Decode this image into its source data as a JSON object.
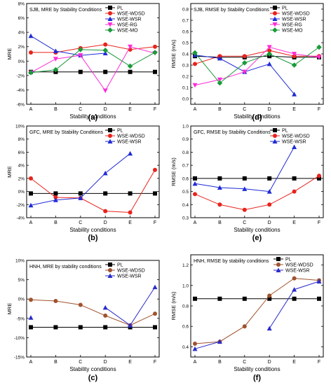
{
  "chart_data": [
    {
      "id": "a",
      "panel_label": "(a)",
      "type": "line",
      "title": "SJB, MRE by Stability Conditions",
      "xlabel": "Stability conditions",
      "ylabel": "MRE",
      "categories": [
        "A",
        "B",
        "C",
        "D",
        "E",
        "F"
      ],
      "ylim": [
        -6,
        8
      ],
      "yticks": [
        -6,
        -4,
        -2,
        0,
        2,
        4,
        6,
        8
      ],
      "ytick_labels": [
        "-6%",
        "-4%",
        "-2%",
        "0%",
        "2%",
        "4%",
        "6%",
        "8%"
      ],
      "legend": "top-right",
      "series": [
        {
          "name": "PL",
          "color": "#000000",
          "marker": "square",
          "values": [
            -1.5,
            -1.5,
            -1.5,
            -1.5,
            -1.5,
            -1.5
          ]
        },
        {
          "name": "WSE-WDSD",
          "color": "#e8231c",
          "marker": "circle",
          "values": [
            1.2,
            1.2,
            1.8,
            2.3,
            1.6,
            2.0
          ]
        },
        {
          "name": "WSE-WSR",
          "color": "#1f2bd6",
          "marker": "triangle-up",
          "values": [
            3.5,
            1.4,
            0.8,
            1.1,
            null,
            null
          ]
        },
        {
          "name": "WSE-RG",
          "color": "#ff2bd6",
          "marker": "triangle-down",
          "values": [
            -1.6,
            0.3,
            0.8,
            -4.1,
            2.0,
            1.1
          ]
        },
        {
          "name": "WSE-MO",
          "color": "#1a9a3a",
          "marker": "diamond",
          "values": [
            -1.6,
            -1.2,
            1.6,
            1.5,
            -0.7,
            1.2
          ]
        }
      ]
    },
    {
      "id": "d",
      "panel_label": "(d)",
      "type": "line",
      "title": "SJB, RMSE by Stability Conditions",
      "xlabel": "Stability conditions",
      "ylabel": "RMSE (m/s)",
      "categories": [
        "A",
        "B",
        "C",
        "D",
        "E",
        "F"
      ],
      "ylim": [
        -0.05,
        0.85
      ],
      "yticks": [
        0,
        0.1,
        0.2,
        0.3,
        0.4,
        0.5,
        0.6,
        0.7,
        0.8
      ],
      "ytick_labels": [
        "0.0",
        "0.1",
        "0.2",
        "0.3",
        "0.4",
        "0.5",
        "0.6",
        "0.7",
        "0.8"
      ],
      "legend": "top-right",
      "series": [
        {
          "name": "PL",
          "color": "#000000",
          "marker": "square",
          "values": [
            0.38,
            0.37,
            0.37,
            0.38,
            0.37,
            0.37
          ]
        },
        {
          "name": "WSE-WDSD",
          "color": "#e8231c",
          "marker": "circle",
          "values": [
            0.31,
            0.38,
            0.38,
            0.43,
            0.38,
            0.38
          ]
        },
        {
          "name": "WSE-WSR",
          "color": "#1f2bd6",
          "marker": "triangle-up",
          "values": [
            0.39,
            0.36,
            0.24,
            0.31,
            0.04,
            null
          ]
        },
        {
          "name": "WSE-RG",
          "color": "#ff2bd6",
          "marker": "triangle-down",
          "values": [
            0.12,
            0.17,
            0.24,
            0.46,
            0.4,
            0.37
          ]
        },
        {
          "name": "WSE-MO",
          "color": "#1a9a3a",
          "marker": "diamond",
          "values": [
            0.41,
            0.14,
            0.32,
            0.4,
            0.3,
            0.46
          ]
        }
      ]
    },
    {
      "id": "b",
      "panel_label": "(b)",
      "type": "line",
      "title": "GFC, MRE by Stability Conditions",
      "xlabel": "Stability conditions",
      "ylabel": "MRE",
      "categories": [
        "A",
        "B",
        "C",
        "D",
        "E",
        "F"
      ],
      "ylim": [
        -4,
        10
      ],
      "yticks": [
        -4,
        -2,
        0,
        2,
        4,
        6,
        8,
        10
      ],
      "ytick_labels": [
        "-4%",
        "-2%",
        "0%",
        "2%",
        "4%",
        "6%",
        "8%",
        "10%"
      ],
      "legend": "top-right",
      "series": [
        {
          "name": "PL",
          "color": "#000000",
          "marker": "square",
          "values": [
            -0.3,
            -0.3,
            -0.3,
            -0.3,
            -0.3,
            -0.3
          ]
        },
        {
          "name": "WSE-WDSD",
          "color": "#e8231c",
          "marker": "circle",
          "values": [
            2.0,
            -0.9,
            -1.0,
            -3.0,
            -3.2,
            3.3
          ]
        },
        {
          "name": "WSE-WSR",
          "color": "#1f2bd6",
          "marker": "triangle-up",
          "values": [
            -2.1,
            -1.3,
            -1.0,
            2.8,
            5.8,
            null
          ]
        }
      ]
    },
    {
      "id": "e",
      "panel_label": "(e)",
      "type": "line",
      "title": "GFC, RMSE by Stability Conditions",
      "xlabel": "Stability conditions",
      "ylabel": "RMSE (m/s)",
      "categories": [
        "A",
        "B",
        "C",
        "D",
        "E",
        "F"
      ],
      "ylim": [
        0.3,
        1.0
      ],
      "yticks": [
        0.3,
        0.4,
        0.5,
        0.6,
        0.7,
        0.8,
        0.9,
        1.0
      ],
      "ytick_labels": [
        "0.3",
        "0.4",
        "0.5",
        "0.6",
        "0.7",
        "0.8",
        "0.9",
        "1.0"
      ],
      "legend": "top-right",
      "series": [
        {
          "name": "PL",
          "color": "#000000",
          "marker": "square",
          "values": [
            0.6,
            0.6,
            0.6,
            0.6,
            0.6,
            0.6
          ]
        },
        {
          "name": "WSE-WDSD",
          "color": "#e8231c",
          "marker": "circle",
          "values": [
            0.48,
            0.4,
            0.36,
            0.4,
            0.5,
            0.62
          ]
        },
        {
          "name": "WSE-WSR",
          "color": "#1f2bd6",
          "marker": "triangle-up",
          "values": [
            0.56,
            0.53,
            0.52,
            0.5,
            0.84,
            null
          ]
        }
      ]
    },
    {
      "id": "c",
      "panel_label": "(c)",
      "type": "line",
      "title": "HNH, MRE by stability conditions",
      "xlabel": "Stability conditions",
      "ylabel": "MRE",
      "categories": [
        "A",
        "B",
        "C",
        "D",
        "E",
        "F"
      ],
      "ylim": [
        -15,
        10
      ],
      "yticks": [
        -15,
        -10,
        -5,
        0,
        5,
        10
      ],
      "ytick_labels": [
        "-15%",
        "-10%",
        "-5%",
        "0%",
        "5%",
        "10%"
      ],
      "legend": "top-right",
      "series": [
        {
          "name": "PL",
          "color": "#000000",
          "marker": "square",
          "values": [
            -7.3,
            -7.3,
            -7.3,
            -7.3,
            -7.3,
            -7.3
          ]
        },
        {
          "name": "WSE-WDSD",
          "color": "#a0522d",
          "marker": "circle",
          "values": [
            -0.2,
            -0.5,
            -1.5,
            -4.3,
            -6.8,
            -3.8
          ]
        },
        {
          "name": "WSE-WSR",
          "color": "#2a2acb",
          "marker": "triangle-up",
          "values": [
            -4.8,
            null,
            null,
            -2.2,
            -6.8,
            3.1
          ]
        }
      ]
    },
    {
      "id": "f",
      "panel_label": "(f)",
      "type": "line",
      "title": "HNH, RMSE by stability conditions",
      "xlabel": "Stability conditions",
      "ylabel": "RMSE (m/s)",
      "categories": [
        "A",
        "B",
        "C",
        "D",
        "E",
        "F"
      ],
      "ylim": [
        0.3,
        1.3
      ],
      "yticks": [
        0.4,
        0.6,
        0.8,
        1.0,
        1.2
      ],
      "ytick_labels": [
        "0.4",
        "0.6",
        "0.8",
        "1.0",
        "1.2"
      ],
      "legend": "top-right",
      "series": [
        {
          "name": "PL",
          "color": "#000000",
          "marker": "square",
          "values": [
            0.87,
            0.87,
            0.87,
            0.87,
            0.87,
            0.87
          ]
        },
        {
          "name": "WSE-WDSD",
          "color": "#a0522d",
          "marker": "circle",
          "values": [
            0.43,
            0.45,
            0.6,
            0.9,
            1.07,
            1.05
          ]
        },
        {
          "name": "WSE-WSR",
          "color": "#2a2acb",
          "marker": "triangle-up",
          "values": [
            0.38,
            0.45,
            null,
            0.58,
            0.96,
            1.04
          ]
        }
      ]
    }
  ]
}
